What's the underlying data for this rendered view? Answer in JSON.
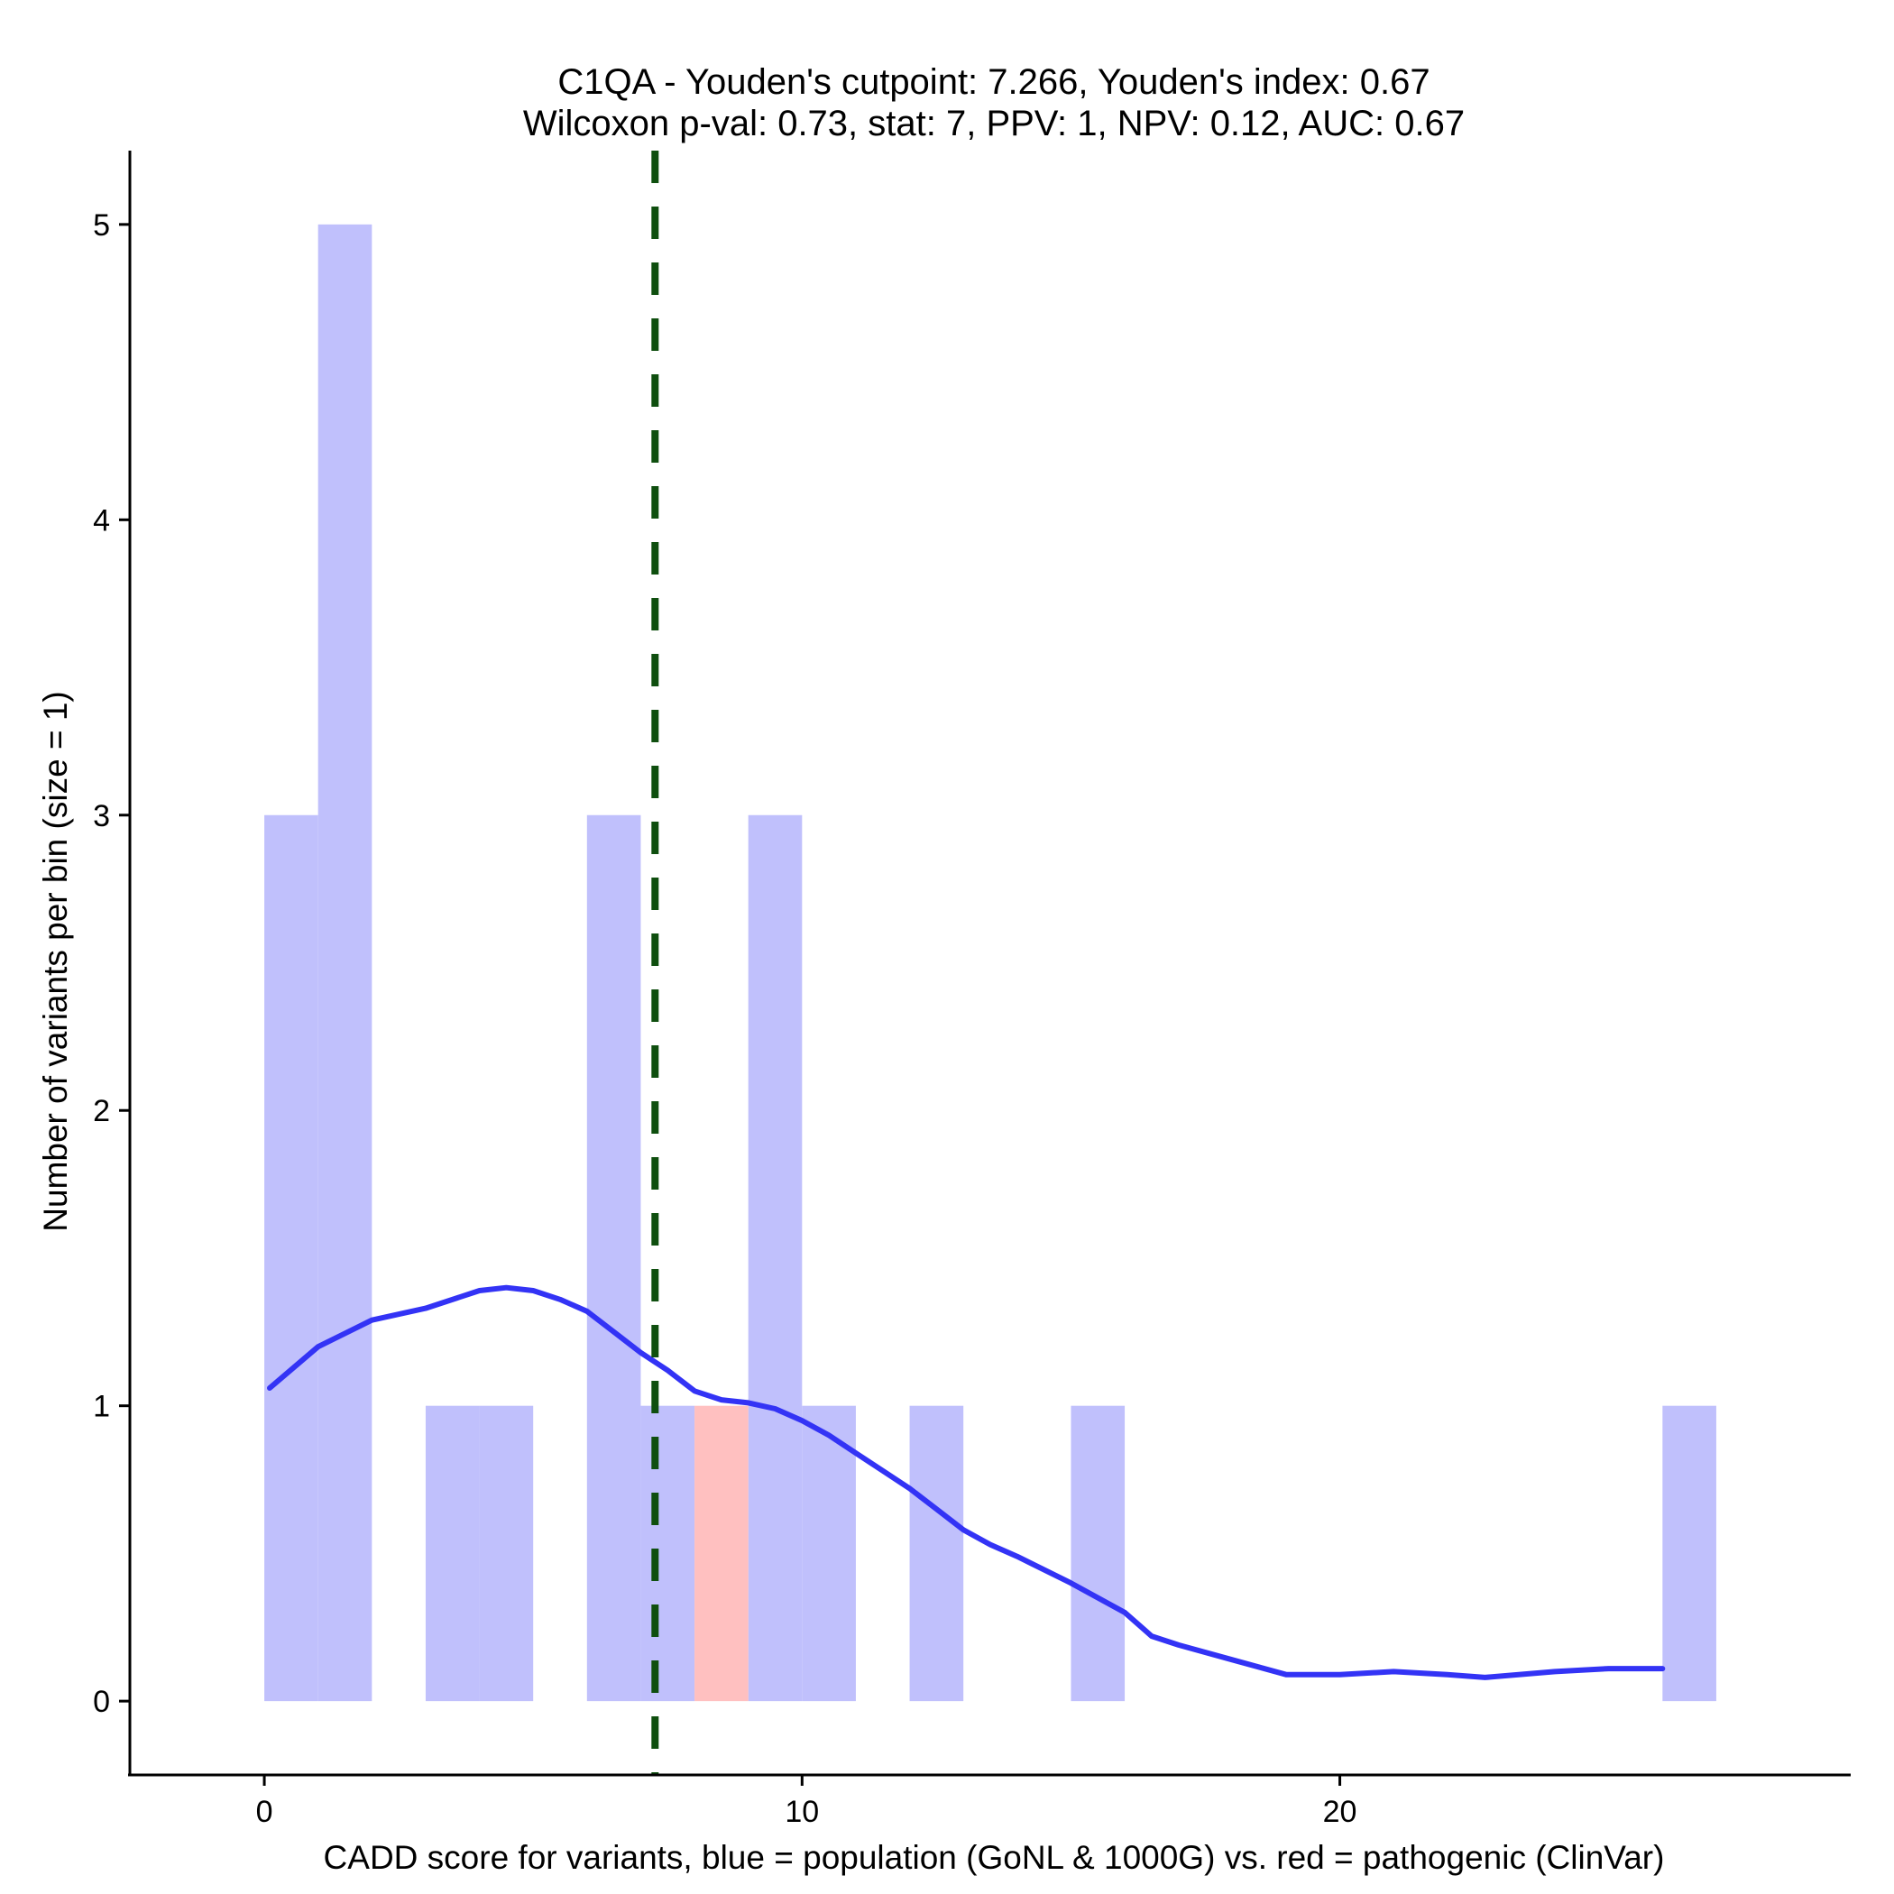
{
  "chart_data": {
    "type": "bar",
    "title": "C1QA - Youden's cutpoint: 7.266, Youden's index: 0.67",
    "subtitle": "Wilcoxon p-val: 0.73, stat: 7, PPV: 1, NPV: 0.12, AUC: 0.67",
    "xlabel": "CADD score for variants, blue = population (GoNL & 1000G) vs. red = pathogenic (ClinVar)",
    "ylabel": "Number of variants per bin (size = 1)",
    "xlim": [
      -2.5,
      29.5
    ],
    "ylim": [
      -0.25,
      5.25
    ],
    "x_ticks": [
      0,
      10,
      20
    ],
    "y_ticks": [
      0,
      1,
      2,
      3,
      4,
      5
    ],
    "bin_size": 1,
    "series": [
      {
        "name": "population (GoNL & 1000G)",
        "color": "#C0C0FC",
        "bins": [
          {
            "x0": 0,
            "x1": 1,
            "count": 3
          },
          {
            "x0": 1,
            "x1": 2,
            "count": 5
          },
          {
            "x0": 3,
            "x1": 4,
            "count": 1
          },
          {
            "x0": 4,
            "x1": 5,
            "count": 1
          },
          {
            "x0": 6,
            "x1": 7,
            "count": 3
          },
          {
            "x0": 7,
            "x1": 8,
            "count": 1
          },
          {
            "x0": 9,
            "x1": 10,
            "count": 3
          },
          {
            "x0": 10,
            "x1": 11,
            "count": 1
          },
          {
            "x0": 12,
            "x1": 13,
            "count": 1
          },
          {
            "x0": 15,
            "x1": 16,
            "count": 1
          },
          {
            "x0": 26,
            "x1": 27,
            "count": 1
          }
        ]
      },
      {
        "name": "pathogenic (ClinVar)",
        "color": "#FFC0C0",
        "bins": [
          {
            "x0": 8,
            "x1": 9,
            "count": 1
          }
        ]
      }
    ],
    "density_curve": {
      "name": "population density",
      "color": "#3333F5",
      "x": [
        0.1,
        1.0,
        2.0,
        3.0,
        4.0,
        4.5,
        5.0,
        5.5,
        6.0,
        6.5,
        7.0,
        7.5,
        8.0,
        8.5,
        9.0,
        9.5,
        10.0,
        10.5,
        11.0,
        11.5,
        12.0,
        12.5,
        13.0,
        13.5,
        14.0,
        15.0,
        16.0,
        16.5,
        17.0,
        18.0,
        19.0,
        19.5,
        20.0,
        21.0,
        22.0,
        22.7,
        24.0,
        25.0,
        26.0
      ],
      "y": [
        1.06,
        1.2,
        1.29,
        1.33,
        1.39,
        1.4,
        1.39,
        1.36,
        1.32,
        1.25,
        1.18,
        1.12,
        1.05,
        1.02,
        1.01,
        0.99,
        0.95,
        0.9,
        0.84,
        0.78,
        0.72,
        0.65,
        0.58,
        0.53,
        0.49,
        0.4,
        0.3,
        0.22,
        0.19,
        0.14,
        0.09,
        0.09,
        0.09,
        0.1,
        0.09,
        0.08,
        0.1,
        0.11,
        0.11
      ]
    },
    "cutpoint": {
      "x": 7.266,
      "color": "#0F4F0F",
      "style": "dashed"
    },
    "grid": false,
    "legend": "none"
  }
}
